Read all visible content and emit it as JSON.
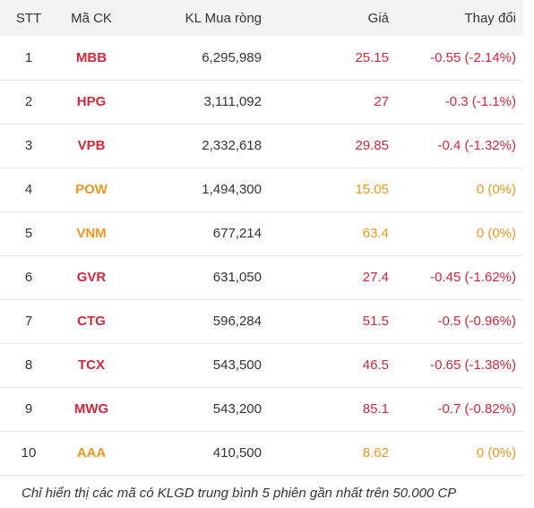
{
  "headers": {
    "stt": "STT",
    "code": "Mã CK",
    "volume": "KL Mua ròng",
    "price": "Giá",
    "change": "Thay đổi"
  },
  "colors": {
    "down": "#d0283c",
    "reference": "#f0961e",
    "header_bg": "#f3f3f3"
  },
  "rows": [
    {
      "stt": "1",
      "code": "MBB",
      "volume": "6,295,989",
      "price": "25.15",
      "change": "-0.55 (-2.14%)",
      "status": "down"
    },
    {
      "stt": "2",
      "code": "HPG",
      "volume": "3,111,092",
      "price": "27",
      "change": "-0.3 (-1.1%)",
      "status": "down"
    },
    {
      "stt": "3",
      "code": "VPB",
      "volume": "2,332,618",
      "price": "29.85",
      "change": "-0.4 (-1.32%)",
      "status": "down"
    },
    {
      "stt": "4",
      "code": "POW",
      "volume": "1,494,300",
      "price": "15.05",
      "change": "0 (0%)",
      "status": "ref"
    },
    {
      "stt": "5",
      "code": "VNM",
      "volume": "677,214",
      "price": "63.4",
      "change": "0 (0%)",
      "status": "ref"
    },
    {
      "stt": "6",
      "code": "GVR",
      "volume": "631,050",
      "price": "27.4",
      "change": "-0.45 (-1.62%)",
      "status": "down"
    },
    {
      "stt": "7",
      "code": "CTG",
      "volume": "596,284",
      "price": "51.5",
      "change": "-0.5 (-0.96%)",
      "status": "down"
    },
    {
      "stt": "8",
      "code": "TCX",
      "volume": "543,500",
      "price": "46.5",
      "change": "-0.65 (-1.38%)",
      "status": "down"
    },
    {
      "stt": "9",
      "code": "MWG",
      "volume": "543,200",
      "price": "85.1",
      "change": "-0.7 (-0.82%)",
      "status": "down"
    },
    {
      "stt": "10",
      "code": "AAA",
      "volume": "410,500",
      "price": "8.62",
      "change": "0 (0%)",
      "status": "ref"
    }
  ],
  "note": "Chỉ hiển thị các mã có KLGD trung bình 5 phiên gần nhất trên 50.000 CP"
}
